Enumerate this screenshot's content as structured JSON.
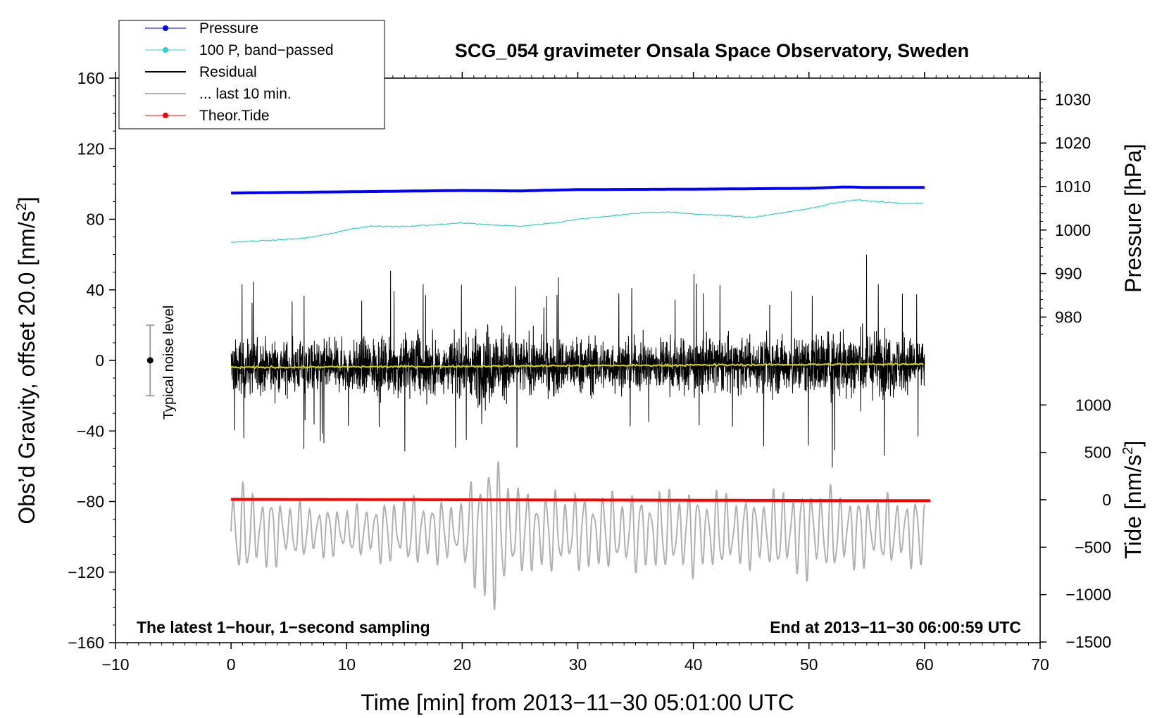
{
  "chart_data": {
    "type": "line",
    "title": "SCG_054 gravimeter Onsala Space Observatory, Sweden",
    "xlabel": "Time [min] from 2013−11−30 05:01:00 UTC",
    "ylabel_left": "Obs’d Gravity, offset 20.0 [nm/s",
    "ylabel_left_sup": "2",
    "ylabel_left_end": "]",
    "ylabel_right_pressure": "Pressure [hPa]",
    "ylabel_right_tide": "Tide [nm/s",
    "ylabel_right_tide_sup": "2",
    "ylabel_right_tide_end": "]",
    "xlim": [
      -10,
      70
    ],
    "ylim_left": [
      -160,
      160
    ],
    "x_ticks": [
      "−10",
      "0",
      "10",
      "20",
      "30",
      "40",
      "50",
      "60",
      "70"
    ],
    "y_ticks_left": [
      "160",
      "120",
      "80",
      "40",
      "0",
      "−40",
      "−80",
      "−120",
      "−160"
    ],
    "pressure_ticks": [
      "1030",
      "1020",
      "1010",
      "1000",
      "990",
      "980"
    ],
    "tide_ticks": [
      "1000",
      "500",
      "0",
      "−500",
      "−1000",
      "−1500"
    ],
    "legend_position": "top-left",
    "grid": false,
    "annotations": {
      "bottom_left": "The latest 1−hour, 1−second sampling",
      "bottom_right": "End at 2013−11−30 06:00:59 UTC",
      "noise": "Typical noise level"
    },
    "noise_bar": {
      "x": -7,
      "center": 0,
      "half_range": 20
    },
    "series": [
      {
        "name": "Pressure",
        "color": "#0000ff",
        "axis": "pressure",
        "x": [
          0,
          10,
          20,
          25,
          30,
          40,
          45,
          50,
          53,
          55,
          60
        ],
        "y": [
          1008.5,
          1008.8,
          1009.1,
          1009.0,
          1009.3,
          1009.4,
          1009.5,
          1009.6,
          1009.9,
          1009.8,
          1009.8
        ]
      },
      {
        "name": "100 P, band−passed",
        "color": "#2ecfcf",
        "axis": "left",
        "x": [
          0,
          3,
          6,
          8,
          10,
          12,
          15,
          18,
          20,
          22,
          25,
          28,
          30,
          33,
          36,
          38,
          40,
          43,
          45,
          47,
          50,
          52,
          54,
          56,
          58,
          60
        ],
        "y": [
          67,
          68,
          69,
          71,
          74,
          76,
          76,
          77,
          78,
          77,
          76,
          78,
          80,
          82,
          84,
          84,
          83,
          82,
          81,
          83,
          86,
          89,
          91,
          90,
          89,
          89
        ]
      },
      {
        "name": "Residual",
        "color": "#000000",
        "axis": "left",
        "x": [
          0,
          60
        ],
        "y": [
          -4,
          -2
        ],
        "noise_amplitude": {
          "x": [
            0,
            5,
            10,
            15,
            20,
            22,
            25,
            30,
            35,
            40,
            45,
            50,
            54,
            58,
            60
          ],
          "y": [
            20,
            18,
            18,
            24,
            18,
            30,
            20,
            20,
            18,
            20,
            18,
            22,
            26,
            20,
            18
          ]
        }
      },
      {
        "name": "... last 10 min.",
        "color": "#b0b0b0",
        "axis": "left",
        "x": [
          0,
          60
        ],
        "y": [
          -97,
          -97
        ],
        "envelope": {
          "x": [
            0,
            5,
            10,
            15,
            20,
            22,
            25,
            30,
            35,
            40,
            45,
            50,
            55,
            60
          ],
          "y": [
            25,
            15,
            12,
            18,
            15,
            45,
            22,
            20,
            20,
            22,
            18,
            24,
            18,
            18
          ]
        }
      },
      {
        "name": "Theor.Tide",
        "color": "#ff0000",
        "axis": "tide",
        "x": [
          0,
          10,
          20,
          30,
          40,
          50,
          60.5
        ],
        "y": [
          5,
          3,
          0,
          -2,
          -5,
          -8,
          -10
        ]
      }
    ]
  }
}
